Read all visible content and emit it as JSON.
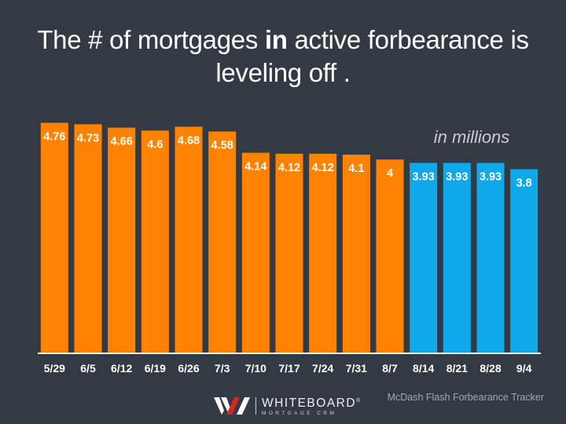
{
  "title": {
    "before": "The # of mortgages ",
    "bold": "in",
    "after": " active forbearance is leveling off ."
  },
  "unit_note": "in millions",
  "source": "McDash Flash Forbearance Tracker",
  "logo": {
    "name": "WHITEBOARD",
    "registered": "®",
    "tagline": "MORTGAGE CRM",
    "icon": "whiteboard-w-icon"
  },
  "colors": {
    "background": "#343a43",
    "orange": "#ff8300",
    "blue": "#0fa8e8",
    "text": "#ffffff",
    "axis": "#ffffff"
  },
  "chart_data": {
    "type": "bar",
    "title": "The # of mortgages in active forbearance is leveling off .",
    "xlabel": "",
    "ylabel": "in millions",
    "ylim": [
      0,
      4.8
    ],
    "grid": false,
    "categories": [
      "5/29",
      "6/5",
      "6/12",
      "6/19",
      "6/26",
      "7/3",
      "7/10",
      "7/17",
      "7/24",
      "7/31",
      "8/7",
      "8/14",
      "8/21",
      "8/28",
      "9/4"
    ],
    "values": [
      4.76,
      4.73,
      4.66,
      4.6,
      4.68,
      4.58,
      4.14,
      4.12,
      4.12,
      4.1,
      4,
      3.93,
      3.93,
      3.93,
      3.8
    ],
    "bar_colors": [
      "orange",
      "orange",
      "orange",
      "orange",
      "orange",
      "orange",
      "orange",
      "orange",
      "orange",
      "orange",
      "orange",
      "blue",
      "blue",
      "blue",
      "blue"
    ]
  }
}
